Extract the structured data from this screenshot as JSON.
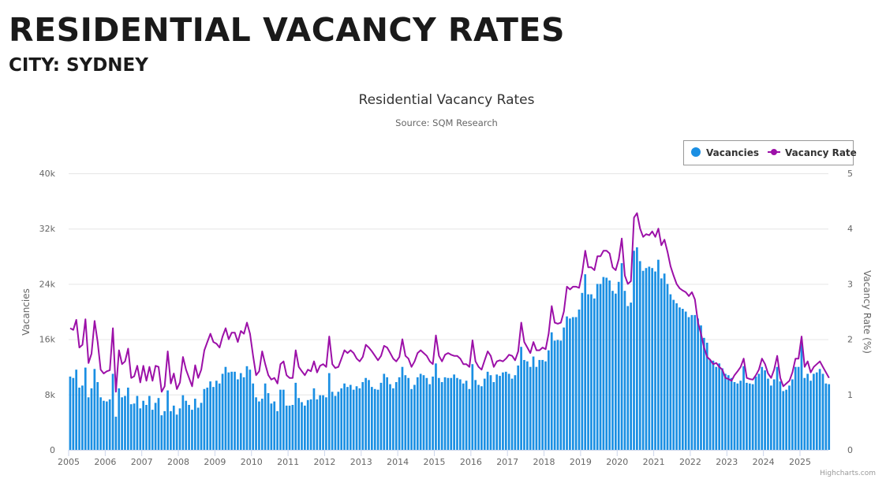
{
  "page": {
    "heading": "RESIDENTIAL VACANCY RATES",
    "subheading": "CITY: SYDNEY"
  },
  "chart_data": {
    "type": "bar+line",
    "title": "Residential Vacancy Rates",
    "subtitle": "Source: SQM Research",
    "credit": "Highcharts.com",
    "x_start": "2005-01",
    "x_interval": "month",
    "x_ticks": [
      "2005",
      "2006",
      "2007",
      "2008",
      "2009",
      "2010",
      "2011",
      "2012",
      "2013",
      "2014",
      "2015",
      "2016",
      "2017",
      "2018",
      "2019",
      "2020",
      "2021",
      "2022",
      "2023",
      "2024",
      "2025"
    ],
    "y_left": {
      "title": "Vacancies",
      "range": [
        0,
        40000
      ],
      "ticks": [
        "0",
        "8k",
        "16k",
        "24k",
        "32k",
        "40k"
      ]
    },
    "y_right": {
      "title": "Vacancy Rate (%)",
      "range": [
        0,
        5
      ],
      "ticks": [
        "0",
        "1",
        "2",
        "3",
        "4",
        "5"
      ]
    },
    "grid": true,
    "legend": {
      "placement": "top-right",
      "items": [
        "Vacancies",
        "Vacancy Rate"
      ]
    },
    "series": [
      {
        "name": "Vacancies",
        "type": "bar",
        "color": "#1a8fe3",
        "values": [
          10600,
          10400,
          11600,
          9000,
          9300,
          11900,
          7600,
          8900,
          11700,
          9800,
          7600,
          7100,
          7000,
          7300,
          11000,
          4800,
          8900,
          7600,
          7800,
          9000,
          6600,
          6700,
          7800,
          6000,
          7100,
          6500,
          7800,
          5800,
          6800,
          7500,
          5000,
          5600,
          8600,
          5600,
          6400,
          5100,
          6000,
          7900,
          7100,
          6500,
          5800,
          7400,
          6100,
          6800,
          8800,
          9000,
          9900,
          9100,
          10000,
          9600,
          11000,
          12000,
          11200,
          11300,
          11300,
          10200,
          11100,
          10500,
          12100,
          11600,
          9600,
          7600,
          7000,
          7400,
          9600,
          8200,
          6700,
          7000,
          5600,
          8700,
          8700,
          6400,
          6400,
          6500,
          9700,
          7500,
          6900,
          6400,
          7200,
          7300,
          8900,
          7300,
          7900,
          7900,
          7600,
          11100,
          8400,
          7800,
          8400,
          8900,
          9600,
          9100,
          9400,
          8700,
          9200,
          8900,
          9800,
          10400,
          10100,
          9100,
          8800,
          8700,
          9700,
          11000,
          10500,
          9500,
          8900,
          9800,
          10500,
          12000,
          10800,
          10400,
          8800,
          9400,
          10500,
          11000,
          10800,
          10400,
          9500,
          10600,
          12500,
          10400,
          9800,
          10500,
          10400,
          10400,
          10900,
          10400,
          10200,
          9600,
          10000,
          8800,
          12400,
          10100,
          9400,
          9200,
          10300,
          11300,
          10800,
          9800,
          10900,
          10700,
          11200,
          11300,
          11000,
          10300,
          10800,
          12200,
          14900,
          13000,
          12800,
          12000,
          13500,
          12000,
          13000,
          13000,
          12800,
          14400,
          17000,
          15800,
          15900,
          15800,
          17700,
          19300,
          19000,
          19200,
          19200,
          20300,
          22700,
          25400,
          22500,
          22500,
          21900,
          24000,
          24000,
          25000,
          24900,
          24500,
          23000,
          22600,
          24300,
          27000,
          23000,
          20800,
          21300,
          28800,
          29300,
          27300,
          25900,
          26300,
          26500,
          26300,
          25800,
          27500,
          24800,
          25500,
          24000,
          22500,
          21700,
          21200,
          20600,
          20400,
          20000,
          19200,
          19500,
          19500,
          19000,
          18000,
          16200,
          15500,
          13000,
          12900,
          12000,
          12500,
          11800,
          11000,
          10800,
          10400,
          9800,
          9600,
          10000,
          12100,
          9700,
          9600,
          9500,
          10600,
          11000,
          12000,
          11500,
          10300,
          9300,
          10200,
          12000,
          9900,
          8500,
          8700,
          9300,
          10200,
          12000,
          12000,
          15600,
          10400,
          11000,
          10000,
          11000,
          11200,
          11700,
          11000,
          9600,
          9500
        ]
      },
      {
        "name": "Vacancy Rate",
        "type": "line",
        "color": "#9c10a8",
        "values": [
          2.2,
          2.17,
          2.35,
          1.85,
          1.9,
          2.36,
          1.57,
          1.74,
          2.33,
          1.95,
          1.45,
          1.38,
          1.42,
          1.44,
          2.2,
          1.05,
          1.8,
          1.55,
          1.6,
          1.83,
          1.3,
          1.33,
          1.52,
          1.22,
          1.52,
          1.25,
          1.5,
          1.25,
          1.52,
          1.5,
          1.05,
          1.15,
          1.78,
          1.2,
          1.38,
          1.1,
          1.22,
          1.68,
          1.45,
          1.3,
          1.15,
          1.53,
          1.3,
          1.45,
          1.8,
          1.95,
          2.1,
          1.95,
          1.92,
          1.85,
          2.05,
          2.2,
          2.0,
          2.12,
          2.12,
          1.95,
          2.15,
          2.1,
          2.3,
          2.1,
          1.7,
          1.35,
          1.42,
          1.78,
          1.55,
          1.35,
          1.27,
          1.3,
          1.2,
          1.55,
          1.6,
          1.35,
          1.3,
          1.3,
          1.8,
          1.5,
          1.42,
          1.35,
          1.45,
          1.42,
          1.6,
          1.4,
          1.52,
          1.55,
          1.5,
          2.05,
          1.55,
          1.48,
          1.5,
          1.65,
          1.8,
          1.75,
          1.8,
          1.75,
          1.65,
          1.6,
          1.68,
          1.9,
          1.85,
          1.78,
          1.7,
          1.62,
          1.7,
          1.88,
          1.85,
          1.75,
          1.65,
          1.6,
          1.68,
          2.0,
          1.7,
          1.65,
          1.5,
          1.6,
          1.75,
          1.8,
          1.75,
          1.7,
          1.6,
          1.55,
          2.07,
          1.7,
          1.6,
          1.72,
          1.75,
          1.72,
          1.7,
          1.7,
          1.65,
          1.55,
          1.55,
          1.5,
          1.98,
          1.6,
          1.5,
          1.45,
          1.62,
          1.78,
          1.7,
          1.5,
          1.6,
          1.62,
          1.6,
          1.65,
          1.72,
          1.7,
          1.62,
          1.78,
          2.3,
          1.95,
          1.85,
          1.75,
          1.95,
          1.8,
          1.8,
          1.85,
          1.82,
          2.1,
          2.6,
          2.3,
          2.28,
          2.3,
          2.5,
          2.95,
          2.9,
          2.95,
          2.95,
          2.93,
          3.2,
          3.6,
          3.3,
          3.3,
          3.25,
          3.5,
          3.5,
          3.6,
          3.6,
          3.55,
          3.3,
          3.25,
          3.45,
          3.82,
          3.15,
          3.0,
          3.05,
          4.2,
          4.28,
          4.0,
          3.85,
          3.9,
          3.88,
          3.95,
          3.85,
          4.0,
          3.7,
          3.8,
          3.58,
          3.32,
          3.15,
          3.0,
          2.92,
          2.88,
          2.85,
          2.78,
          2.85,
          2.72,
          2.3,
          2.1,
          1.85,
          1.68,
          1.63,
          1.55,
          1.57,
          1.5,
          1.45,
          1.3,
          1.28,
          1.25,
          1.35,
          1.42,
          1.5,
          1.65,
          1.3,
          1.28,
          1.27,
          1.35,
          1.45,
          1.65,
          1.55,
          1.38,
          1.3,
          1.45,
          1.7,
          1.3,
          1.15,
          1.2,
          1.25,
          1.4,
          1.65,
          1.65,
          2.05,
          1.5,
          1.6,
          1.4,
          1.5,
          1.55,
          1.6,
          1.5,
          1.4,
          1.3
        ]
      }
    ]
  }
}
